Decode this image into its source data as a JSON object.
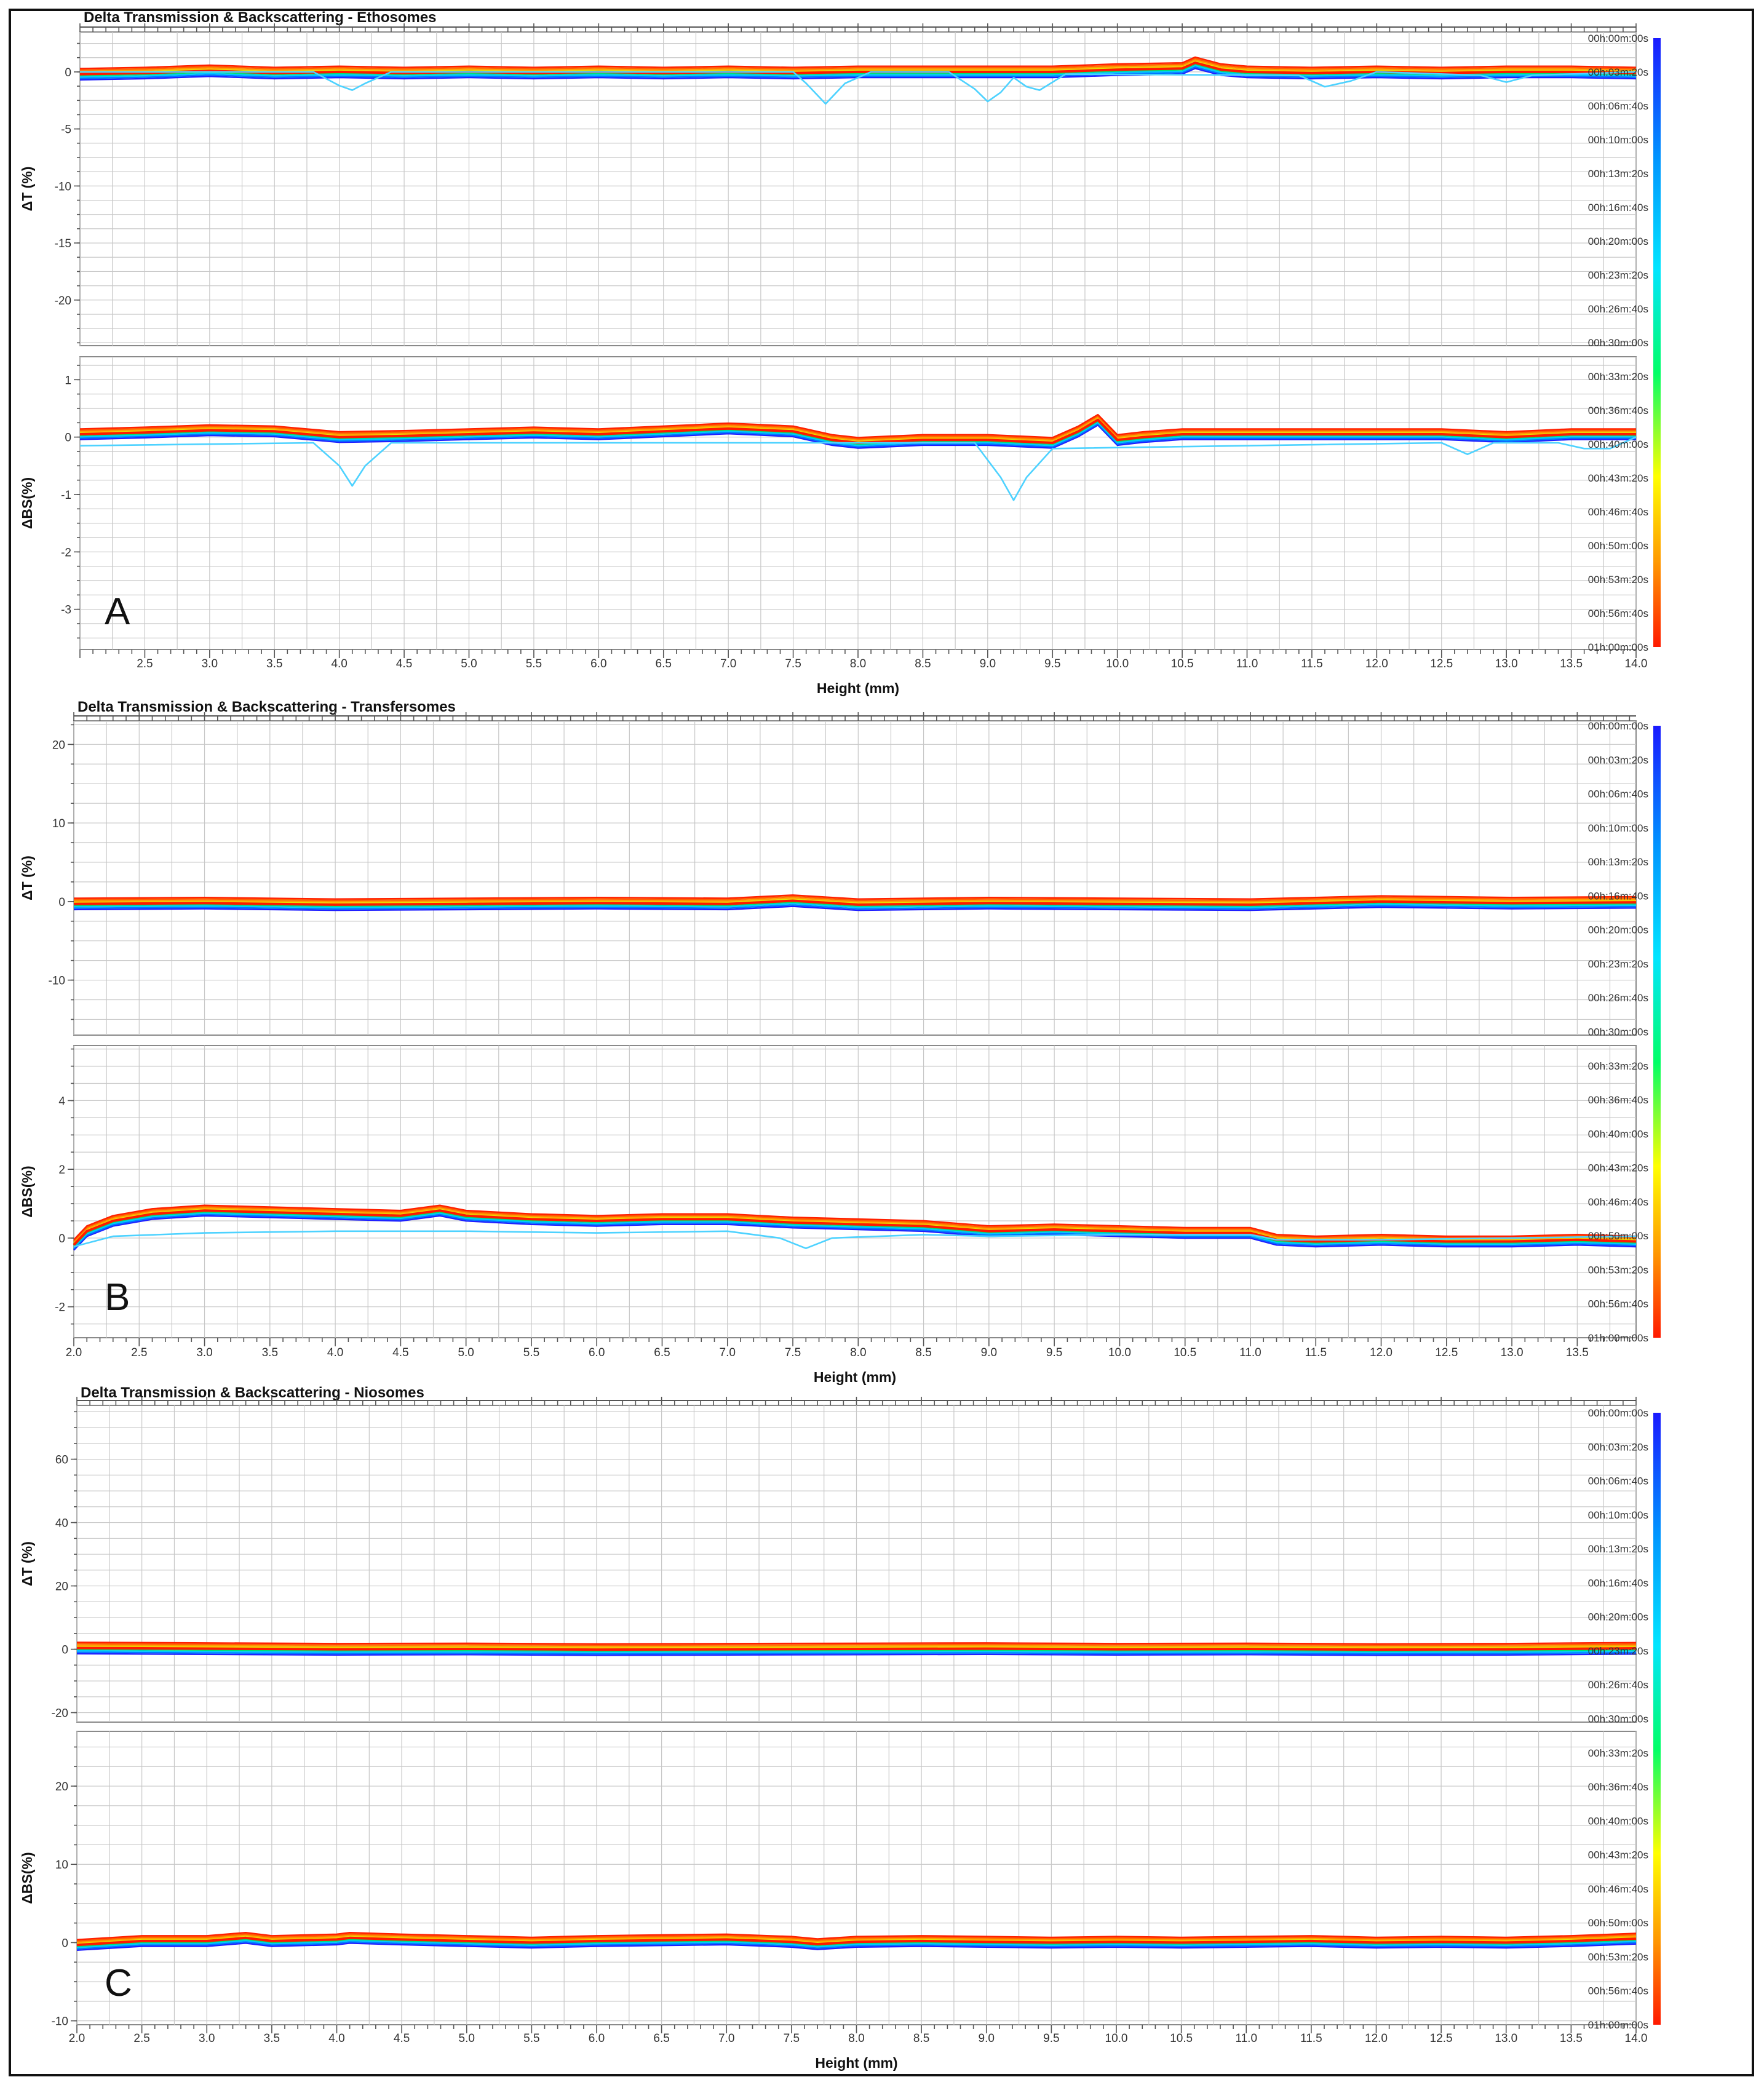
{
  "legend_times": [
    "00h:00m:00s",
    "00h:03m:20s",
    "00h:06m:40s",
    "00h:10m:00s",
    "00h:13m:20s",
    "00h:16m:40s",
    "00h:20m:00s",
    "00h:23m:20s",
    "00h:26m:40s",
    "00h:30m:00s",
    "00h:33m:20s",
    "00h:36m:40s",
    "00h:40m:00s",
    "00h:43m:20s",
    "00h:46m:40s",
    "00h:50m:00s",
    "00h:53m:20s",
    "00h:56m:40s",
    "01h:00m:00s"
  ],
  "colors": {
    "scale_start": "#1a1aff",
    "scale_mid": "#00ff66",
    "scale_end": "#ff1a00",
    "highlight_trace": "#4dd2ff"
  },
  "chart_data": [
    {
      "type": "line",
      "panel": "A",
      "title": "Delta Transmission & Backscattering - Ethosomes",
      "xlabel": "Height (mm)",
      "x_tick_labels": [
        "2.5",
        "3.0",
        "3.5",
        "4.0",
        "4.5",
        "5.0",
        "5.5",
        "6.0",
        "6.5",
        "7.0",
        "7.5",
        "8.0",
        "8.5",
        "9.0",
        "9.5",
        "10.0",
        "10.5",
        "11.0",
        "11.5",
        "12.0",
        "12.5",
        "13.0",
        "13.5",
        "14.0"
      ],
      "xlim": [
        2.0,
        14.0
      ],
      "grid": true,
      "legend": "color scale right",
      "subplots": [
        {
          "ylabel": "ΔT (%)",
          "ylim": [
            -24,
            3.5
          ],
          "yticks": [
            0,
            -5,
            -10,
            -15,
            -20
          ],
          "y_tick_labels": [
            "0",
            "-5",
            "-10",
            "-15",
            "-20"
          ],
          "series": [
            {
              "x": [
                2.0,
                2.5,
                3.0,
                3.5,
                4.0,
                4.5,
                5.0,
                5.5,
                6.0,
                6.5,
                7.0,
                7.5,
                8.0,
                8.5,
                9.0,
                9.5,
                10.0,
                10.5,
                10.6,
                10.8,
                11.0,
                11.5,
                12.0,
                12.5,
                13.0,
                13.5,
                14.0
              ],
              "y": [
                -0.2,
                -0.1,
                0.1,
                -0.1,
                0.0,
                -0.1,
                0.0,
                -0.1,
                0.0,
                -0.1,
                0.0,
                -0.1,
                0.0,
                0.0,
                0.0,
                0.0,
                0.2,
                0.3,
                0.8,
                0.2,
                0.0,
                -0.1,
                0.0,
                -0.1,
                0.0,
                0.0,
                -0.1
              ]
            },
            {
              "x": [
                2.0,
                3.8,
                4.0,
                4.1,
                4.2,
                4.4,
                7.5,
                7.6,
                7.75,
                7.9,
                8.1,
                8.7,
                8.9,
                9.0,
                9.1,
                9.2,
                9.3,
                9.4,
                9.6,
                11.4,
                11.6,
                11.8,
                12.0,
                12.8,
                13.0,
                13.2,
                14.0
              ],
              "y": [
                0.0,
                0.0,
                -1.2,
                -1.6,
                -1.0,
                0.0,
                0.0,
                -1.0,
                -2.8,
                -1.0,
                0.0,
                0.0,
                -1.5,
                -2.6,
                -1.8,
                -0.5,
                -1.3,
                -1.6,
                -0.2,
                -0.3,
                -1.3,
                -0.8,
                0.0,
                -0.3,
                -0.9,
                -0.3,
                0.0
              ]
            }
          ]
        },
        {
          "ylabel": "ΔBS(%)",
          "ylim": [
            -3.7,
            1.4
          ],
          "yticks": [
            1,
            0,
            -1,
            -2,
            -3
          ],
          "y_tick_labels": [
            "1",
            "0",
            "-1",
            "-2",
            "-3"
          ],
          "series": [
            {
              "x": [
                2.0,
                2.5,
                3.0,
                3.5,
                4.0,
                4.5,
                5.0,
                5.5,
                6.0,
                6.5,
                7.0,
                7.5,
                7.8,
                8.0,
                8.5,
                9.0,
                9.5,
                9.7,
                9.85,
                10.0,
                10.2,
                10.5,
                11.0,
                11.5,
                12.0,
                12.5,
                13.0,
                13.5,
                14.0
              ],
              "y": [
                0.05,
                0.08,
                0.12,
                0.1,
                0.0,
                0.02,
                0.05,
                0.08,
                0.05,
                0.1,
                0.15,
                0.1,
                -0.05,
                -0.1,
                -0.05,
                -0.05,
                -0.1,
                0.1,
                0.3,
                -0.05,
                0.0,
                0.05,
                0.05,
                0.05,
                0.05,
                0.05,
                0.0,
                0.05,
                0.05
              ]
            },
            {
              "x": [
                2.0,
                3.8,
                4.0,
                4.1,
                4.2,
                4.4,
                8.9,
                9.1,
                9.2,
                9.3,
                9.5,
                12.5,
                12.7,
                12.9,
                13.4,
                13.6,
                13.8,
                14.0
              ],
              "y": [
                -0.15,
                -0.1,
                -0.5,
                -0.85,
                -0.5,
                -0.1,
                -0.1,
                -0.7,
                -1.1,
                -0.7,
                -0.2,
                -0.1,
                -0.3,
                -0.1,
                -0.1,
                -0.2,
                -0.2,
                0.0
              ]
            }
          ]
        }
      ]
    },
    {
      "type": "line",
      "panel": "B",
      "title": "Delta Transmission & Backscattering - Transfersomes",
      "xlabel": "Height (mm)",
      "x_tick_labels": [
        "2.0",
        "2.5",
        "3.0",
        "3.5",
        "4.0",
        "4.5",
        "5.0",
        "5.5",
        "6.0",
        "6.5",
        "7.0",
        "7.5",
        "8.0",
        "8.5",
        "9.0",
        "9.5",
        "10.0",
        "10.5",
        "11.0",
        "11.5",
        "12.0",
        "12.5",
        "13.0",
        "13.5"
      ],
      "xlim": [
        2.0,
        13.95
      ],
      "grid": true,
      "legend": "color scale right",
      "subplots": [
        {
          "ylabel": "ΔT (%)",
          "ylim": [
            -17,
            23
          ],
          "yticks": [
            20,
            10,
            0,
            -10
          ],
          "y_tick_labels": [
            "20",
            "10",
            "0",
            "-10"
          ],
          "series": [
            {
              "x": [
                2.0,
                3.0,
                4.0,
                5.0,
                6.0,
                7.0,
                7.5,
                8.0,
                9.0,
                10.0,
                11.0,
                12.0,
                13.0,
                13.95
              ],
              "y": [
                -0.3,
                -0.2,
                -0.4,
                -0.3,
                -0.2,
                -0.3,
                0.1,
                -0.4,
                -0.2,
                -0.3,
                -0.4,
                0.0,
                -0.2,
                -0.1
              ]
            }
          ]
        },
        {
          "ylabel": "ΔBS(%)",
          "ylim": [
            -2.9,
            5.6
          ],
          "yticks": [
            4,
            2,
            0,
            -2
          ],
          "y_tick_labels": [
            "4",
            "2",
            "0",
            "-2"
          ],
          "series": [
            {
              "x": [
                2.0,
                2.1,
                2.3,
                2.6,
                3.0,
                3.5,
                4.0,
                4.5,
                4.8,
                5.0,
                5.5,
                6.0,
                6.5,
                7.0,
                7.5,
                8.0,
                8.5,
                9.0,
                9.5,
                10.0,
                10.5,
                11.0,
                11.2,
                11.5,
                12.0,
                12.5,
                13.0,
                13.5,
                13.95
              ],
              "y": [
                -0.2,
                0.2,
                0.5,
                0.7,
                0.8,
                0.75,
                0.7,
                0.65,
                0.8,
                0.65,
                0.55,
                0.5,
                0.55,
                0.55,
                0.45,
                0.4,
                0.35,
                0.2,
                0.25,
                0.2,
                0.15,
                0.15,
                -0.05,
                -0.1,
                -0.05,
                -0.1,
                -0.1,
                -0.05,
                -0.1
              ]
            },
            {
              "x": [
                2.0,
                2.3,
                3.0,
                4.0,
                5.0,
                6.0,
                7.0,
                7.4,
                7.6,
                7.8,
                8.5,
                9.0,
                10.0,
                11.0,
                11.2,
                12.0,
                13.0,
                13.95
              ],
              "y": [
                -0.25,
                0.05,
                0.15,
                0.2,
                0.2,
                0.15,
                0.2,
                0.0,
                -0.3,
                0.0,
                0.1,
                0.05,
                0.1,
                0.1,
                -0.05,
                -0.05,
                0.0,
                0.05
              ]
            }
          ]
        }
      ]
    },
    {
      "type": "line",
      "panel": "C",
      "title": "Delta Transmission & Backscattering - Niosomes",
      "xlabel": "Height (mm)",
      "x_tick_labels": [
        "2.0",
        "2.5",
        "3.0",
        "3.5",
        "4.0",
        "4.5",
        "5.0",
        "5.5",
        "6.0",
        "6.5",
        "7.0",
        "7.5",
        "8.0",
        "8.5",
        "9.0",
        "9.5",
        "10.0",
        "10.5",
        "11.0",
        "11.5",
        "12.0",
        "12.5",
        "13.0",
        "13.5",
        "14.0"
      ],
      "xlim": [
        2.0,
        14.0
      ],
      "grid": true,
      "legend": "color scale right",
      "subplots": [
        {
          "ylabel": "ΔT (%)",
          "ylim": [
            -23,
            77
          ],
          "yticks": [
            60,
            40,
            20,
            0,
            -20
          ],
          "y_tick_labels": [
            "60",
            "40",
            "20",
            "0",
            "-20"
          ],
          "series": [
            {
              "x": [
                2.0,
                3.0,
                4.0,
                5.0,
                6.0,
                7.0,
                8.0,
                9.0,
                10.0,
                11.0,
                12.0,
                13.0,
                14.0
              ],
              "y": [
                0.4,
                0.2,
                0.0,
                0.1,
                -0.1,
                0.0,
                0.1,
                0.2,
                0.0,
                0.1,
                -0.1,
                0.0,
                0.3
              ]
            }
          ]
        },
        {
          "ylabel": "ΔBS(%)",
          "ylim": [
            -10.5,
            27
          ],
          "yticks": [
            20,
            10,
            0,
            -10
          ],
          "y_tick_labels": [
            "20",
            "10",
            "0",
            "-10"
          ],
          "series": [
            {
              "x": [
                2.0,
                2.5,
                3.0,
                3.3,
                3.5,
                4.0,
                4.1,
                4.5,
                5.0,
                5.5,
                6.0,
                6.5,
                7.0,
                7.5,
                7.7,
                8.0,
                8.5,
                9.0,
                9.5,
                10.0,
                10.5,
                11.0,
                11.5,
                12.0,
                12.5,
                13.0,
                13.5,
                14.0
              ],
              "y": [
                -0.3,
                0.2,
                0.2,
                0.6,
                0.2,
                0.4,
                0.6,
                0.4,
                0.2,
                0.0,
                0.2,
                0.3,
                0.4,
                0.1,
                -0.2,
                0.1,
                0.2,
                0.1,
                0.0,
                0.1,
                0.0,
                0.1,
                0.2,
                0.0,
                0.1,
                0.0,
                0.2,
                0.5
              ]
            }
          ]
        }
      ]
    }
  ]
}
